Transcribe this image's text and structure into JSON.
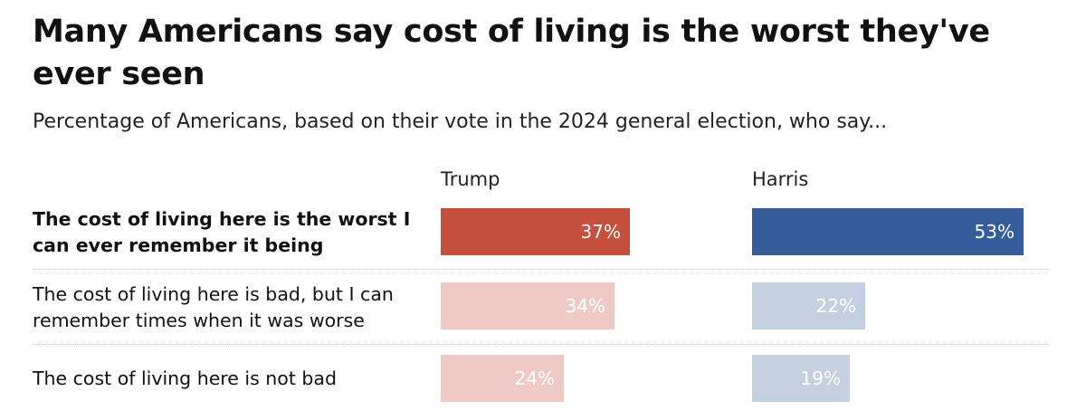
{
  "chart_data": {
    "type": "bar",
    "title": "Many Americans say cost of living is the worst they've ever seen",
    "subtitle": "Percentage of Americans, based on their vote in the 2024 general election, who say...",
    "categories": [
      "The cost of living here is the worst I can ever remember it being",
      "The cost of living here is bad, but I can remember times when it was worse",
      "The cost of living here is not bad"
    ],
    "series": [
      {
        "name": "Trump",
        "values": [
          37,
          34,
          24
        ],
        "labels": [
          "37%",
          "34%",
          "24%"
        ],
        "colors": [
          "#c4503d",
          "#efcac5",
          "#efcac5"
        ]
      },
      {
        "name": "Harris",
        "values": [
          53,
          22,
          19
        ],
        "labels": [
          "53%",
          "22%",
          "19%"
        ],
        "colors": [
          "#355c9b",
          "#c4cfe2",
          "#c4cfe2"
        ]
      }
    ],
    "xlim": [
      0,
      53
    ],
    "highlighted_category": 0,
    "grid": false
  }
}
